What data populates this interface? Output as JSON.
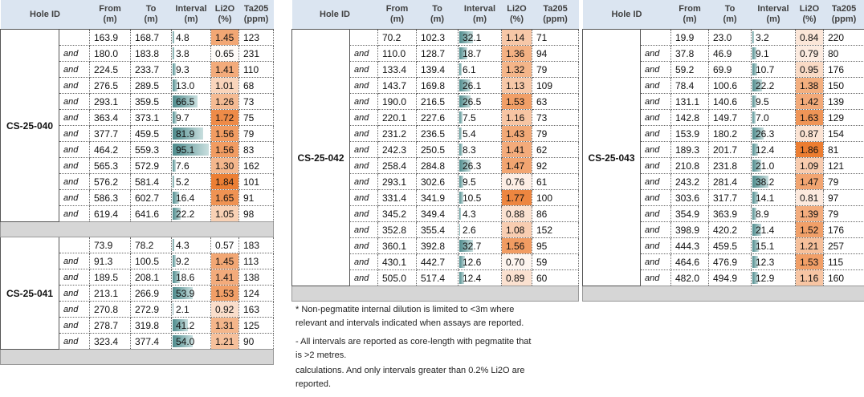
{
  "tables": [
    {
      "header": [
        {
          "label": "Hole ID"
        },
        {
          "label": "From",
          "unit": "(m)"
        },
        {
          "label": "To",
          "unit": "(m)"
        },
        {
          "label": "Interval",
          "unit": "(m)"
        },
        {
          "label": "Li2O",
          "unit": "(%)"
        },
        {
          "label": "Ta205",
          "unit": "(ppm)"
        }
      ],
      "groups": [
        {
          "hole_id": "CS-25-040",
          "rows": [
            [
              null,
              "163.9",
              "168.7",
              "4.8",
              "1.45",
              "123"
            ],
            [
              "and",
              "180.0",
              "183.8",
              "3.8",
              "0.65",
              "231"
            ],
            [
              "and",
              "224.5",
              "233.7",
              "9.3",
              "1.41",
              "110"
            ],
            [
              "and",
              "276.5",
              "289.5",
              "13.0",
              "1.01",
              "68"
            ],
            [
              "and",
              "293.1",
              "359.5",
              "66.5",
              "1.26",
              "73"
            ],
            [
              "and",
              "363.4",
              "373.1",
              "9.7",
              "1.72",
              "75"
            ],
            [
              "and",
              "377.7",
              "459.5",
              "81.9",
              "1.56",
              "79"
            ],
            [
              "and",
              "464.2",
              "559.3",
              "95.1",
              "1.56",
              "83"
            ],
            [
              "and",
              "565.3",
              "572.9",
              "7.6",
              "1.30",
              "162"
            ],
            [
              "and",
              "576.2",
              "581.4",
              "5.2",
              "1.84",
              "101"
            ],
            [
              "and",
              "586.3",
              "602.7",
              "16.4",
              "1.65",
              "91"
            ],
            [
              "and",
              "619.4",
              "641.6",
              "22.2",
              "1.05",
              "98"
            ]
          ]
        },
        {
          "hole_id": "CS-25-041",
          "rows": [
            [
              null,
              "73.9",
              "78.2",
              "4.3",
              "0.57",
              "183"
            ],
            [
              "and",
              "91.3",
              "100.5",
              "9.2",
              "1.45",
              "113"
            ],
            [
              "and",
              "189.5",
              "208.1",
              "18.6",
              "1.41",
              "138"
            ],
            [
              "and",
              "213.1",
              "266.9",
              "53.9",
              "1.53",
              "124"
            ],
            [
              "and",
              "270.8",
              "272.9",
              "2.1",
              "0.92",
              "163"
            ],
            [
              "and",
              "278.7",
              "319.8",
              "41.2",
              "1.31",
              "125"
            ],
            [
              "and",
              "323.4",
              "377.4",
              "54.0",
              "1.21",
              "90"
            ]
          ]
        }
      ]
    },
    {
      "header": [
        {
          "label": "Hole ID"
        },
        {
          "label": "From",
          "unit": "(m)"
        },
        {
          "label": "To",
          "unit": "(m)"
        },
        {
          "label": "Interval",
          "unit": "(m)"
        },
        {
          "label": "Li2O",
          "unit": "(%)"
        },
        {
          "label": "Ta205",
          "unit": "(ppm)"
        }
      ],
      "groups": [
        {
          "hole_id": "CS-25-042",
          "rows": [
            [
              null,
              "70.2",
              "102.3",
              "32.1",
              "1.14",
              "71"
            ],
            [
              "and",
              "110.0",
              "128.7",
              "18.7",
              "1.36",
              "94"
            ],
            [
              "and",
              "133.4",
              "139.4",
              "6.1",
              "1.32",
              "79"
            ],
            [
              "and",
              "143.7",
              "169.8",
              "26.1",
              "1.13",
              "109"
            ],
            [
              "and",
              "190.0",
              "216.5",
              "26.5",
              "1.53",
              "63"
            ],
            [
              "and",
              "220.1",
              "227.6",
              "7.5",
              "1.16",
              "73"
            ],
            [
              "and",
              "231.2",
              "236.5",
              "5.4",
              "1.43",
              "79"
            ],
            [
              "and",
              "242.3",
              "250.5",
              "8.3",
              "1.41",
              "62"
            ],
            [
              "and",
              "258.4",
              "284.8",
              "26.3",
              "1.47",
              "92"
            ],
            [
              "and",
              "293.1",
              "302.6",
              "9.5",
              "0.76",
              "61"
            ],
            [
              "and",
              "331.4",
              "341.9",
              "10.5",
              "1.77",
              "100"
            ],
            [
              "and",
              "345.2",
              "349.4",
              "4.3",
              "0.88",
              "86"
            ],
            [
              "and",
              "352.8",
              "355.4",
              "2.6",
              "1.08",
              "152"
            ],
            [
              "and",
              "360.1",
              "392.8",
              "32.7",
              "1.56",
              "95"
            ],
            [
              "and",
              "430.1",
              "442.7",
              "12.6",
              "0.70",
              "59"
            ],
            [
              "and",
              "505.0",
              "517.4",
              "12.4",
              "0.89",
              "60"
            ]
          ]
        }
      ]
    },
    {
      "header": [
        {
          "label": "Hole ID"
        },
        {
          "label": "From",
          "unit": "(m)"
        },
        {
          "label": "To",
          "unit": "(m)"
        },
        {
          "label": "Interval",
          "unit": "(m)"
        },
        {
          "label": "Li2O",
          "unit": "(%)"
        },
        {
          "label": "Ta205",
          "unit": "(ppm)"
        }
      ],
      "groups": [
        {
          "hole_id": "CS-25-043",
          "rows": [
            [
              null,
              "19.9",
              "23.0",
              "3.2",
              "0.84",
              "220"
            ],
            [
              "and",
              "37.8",
              "46.9",
              "9.1",
              "0.79",
              "80"
            ],
            [
              "and",
              "59.2",
              "69.9",
              "10.7",
              "0.95",
              "176"
            ],
            [
              "and",
              "78.4",
              "100.6",
              "22.2",
              "1.38",
              "150"
            ],
            [
              "and",
              "131.1",
              "140.6",
              "9.5",
              "1.42",
              "139"
            ],
            [
              "and",
              "142.8",
              "149.7",
              "7.0",
              "1.63",
              "129"
            ],
            [
              "and",
              "153.9",
              "180.2",
              "26.3",
              "0.87",
              "154"
            ],
            [
              "and",
              "189.3",
              "201.7",
              "12.4",
              "1.86",
              "81"
            ],
            [
              "and",
              "210.8",
              "231.8",
              "21.0",
              "1.09",
              "121"
            ],
            [
              "and",
              "243.2",
              "281.4",
              "38.2",
              "1.47",
              "79"
            ],
            [
              "and",
              "303.6",
              "317.7",
              "14.1",
              "0.81",
              "97"
            ],
            [
              "and",
              "354.9",
              "363.9",
              "8.9",
              "1.39",
              "79"
            ],
            [
              "and",
              "398.9",
              "420.2",
              "21.4",
              "1.52",
              "176"
            ],
            [
              "and",
              "444.3",
              "459.5",
              "15.1",
              "1.21",
              "257"
            ],
            [
              "and",
              "464.6",
              "476.9",
              "12.3",
              "1.53",
              "115"
            ],
            [
              "and",
              "482.0",
              "494.9",
              "12.9",
              "1.16",
              "160"
            ]
          ]
        }
      ]
    }
  ],
  "notes": [
    "* Non-pegmatite internal dilution is limited to <3m where relevant and intervals indicated when assays are reported.",
    "- All intervals are reported as core-length with pegmatite that is >2 metres.",
    "calculations. And only intervals greater than 0.2% Li2O are reported."
  ]
}
